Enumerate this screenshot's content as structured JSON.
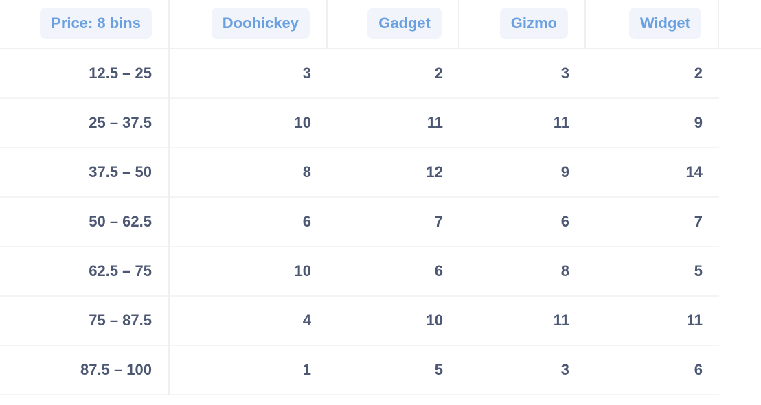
{
  "table": {
    "row_header_label": "Price: 8 bins",
    "columns": [
      "Doohickey",
      "Gadget",
      "Gizmo",
      "Widget"
    ],
    "rows": [
      {
        "label": "12.5 – 25",
        "values": [
          3,
          2,
          3,
          2
        ]
      },
      {
        "label": "25 – 37.5",
        "values": [
          10,
          11,
          11,
          9
        ]
      },
      {
        "label": "37.5 – 50",
        "values": [
          8,
          12,
          9,
          14
        ]
      },
      {
        "label": "50 – 62.5",
        "values": [
          6,
          7,
          6,
          7
        ]
      },
      {
        "label": "62.5 – 75",
        "values": [
          10,
          6,
          8,
          5
        ]
      },
      {
        "label": "75 – 87.5",
        "values": [
          4,
          10,
          11,
          11
        ]
      },
      {
        "label": "87.5 – 100",
        "values": [
          1,
          5,
          3,
          6
        ]
      }
    ]
  },
  "colors": {
    "header_pill_bg": "#f1f5fb",
    "header_text": "#6a9fe0",
    "cell_text": "#4c5773"
  }
}
